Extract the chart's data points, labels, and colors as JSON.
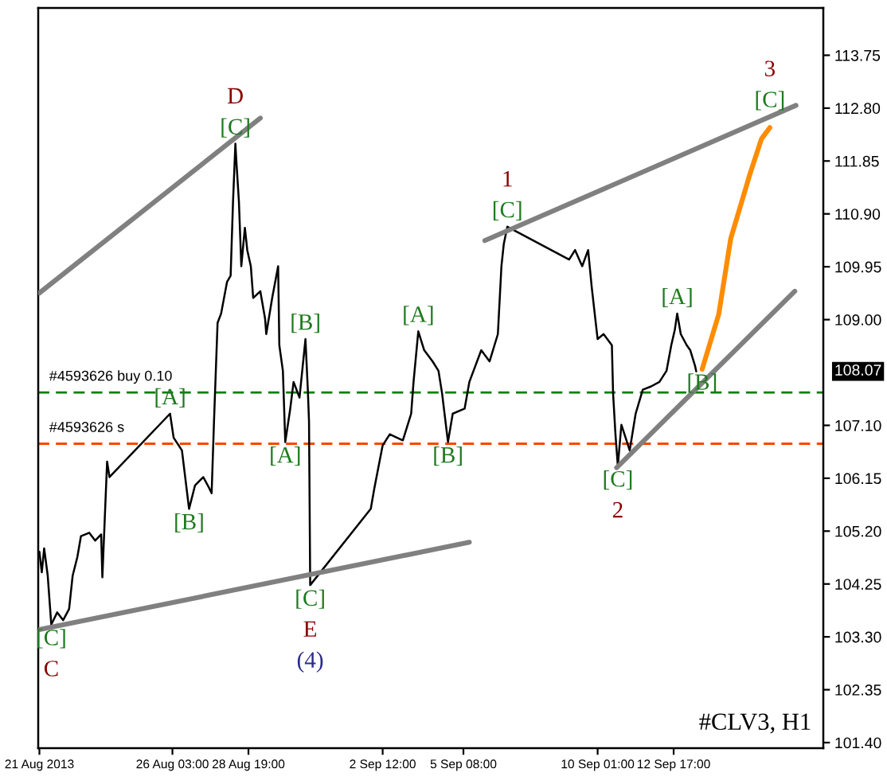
{
  "chart_data": {
    "type": "line",
    "xlim": [
      "2013-08-21T10:00",
      "2013-09-17T23:00"
    ],
    "xticks": [
      {
        "value": "2013-08-21T11:00",
        "label": "21 Aug 2013"
      },
      {
        "value": "2013-08-26T03:00",
        "label": "26 Aug 03:00"
      },
      {
        "value": "2013-08-28T19:00",
        "label": "28 Aug 19:00"
      },
      {
        "value": "2013-09-02T12:00",
        "label": "2 Sep 12:00"
      },
      {
        "value": "2013-09-05T08:00",
        "label": "5 Sep 08:00"
      },
      {
        "value": "2013-09-10T01:00",
        "label": "10 Sep 01:00"
      },
      {
        "value": "2013-09-12T17:00",
        "label": "12 Sep 17:00"
      }
    ],
    "ylim": [
      101.3,
      114.6
    ],
    "yticks": [
      113.75,
      {
        "value": 112.8,
        "label": "112.80"
      },
      111.85,
      {
        "value": 110.9,
        "label": "110.90"
      },
      109.95,
      {
        "value": 109.0,
        "label": "109.00"
      },
      {
        "value": 107.1,
        "label": "107.10"
      },
      106.15,
      {
        "value": 105.2,
        "label": "105.20"
      },
      104.25,
      {
        "value": 103.3,
        "label": "103.30"
      },
      102.35,
      {
        "value": 101.4,
        "label": "101.40"
      }
    ],
    "series": [
      {
        "color": "#000000",
        "x": [
          "2013-08-21T11:00",
          "2013-08-21T13:00",
          "2013-08-21T15:00",
          "2013-08-21T18:00",
          "2013-08-21T21:00",
          "2013-08-22T02:00",
          "2013-08-22T07:00",
          "2013-08-22T12:00",
          "2013-08-22T15:00",
          "2013-08-22T19:00",
          "2013-08-22T22:00",
          "2013-08-23T05:00",
          "2013-08-23T10:00",
          "2013-08-23T15:00",
          "2013-08-23T16:00",
          "2013-08-23T20:00",
          "2013-08-23T22:00",
          "2013-08-26T01:00",
          "2013-08-26T04:00",
          "2013-08-26T11:00",
          "2013-08-26T17:00",
          "2013-08-26T22:00",
          "2013-08-27T05:00",
          "2013-08-27T10:00",
          "2013-08-27T12:00",
          "2013-08-27T14:00",
          "2013-08-27T17:00",
          "2013-08-27T20:00",
          "2013-08-28T01:00",
          "2013-08-28T04:00",
          "2013-08-28T06:00",
          "2013-08-28T08:00",
          "2013-08-28T09:00",
          "2013-08-28T11:00",
          "2013-08-28T13:00",
          "2013-08-28T16:00",
          "2013-08-28T18:00",
          "2013-08-28T21:00",
          "2013-08-28T23:00",
          "2013-08-29T05:00",
          "2013-08-29T09:00",
          "2013-08-29T10:00",
          "2013-08-29T15:00",
          "2013-08-29T20:00",
          "2013-08-29T21:00",
          "2013-08-30T00:00",
          "2013-08-30T02:00",
          "2013-08-30T06:00",
          "2013-08-30T09:00",
          "2013-08-30T14:00",
          "2013-08-30T19:00",
          "2013-08-30T21:00",
          "2013-08-30T22:00",
          "2013-08-30T23:00",
          "2013-09-02T02:00",
          "2013-09-02T05:00",
          "2013-09-02T12:00",
          "2013-09-02T18:00",
          "2013-09-03T05:00",
          "2013-09-03T12:00",
          "2013-09-03T14:00",
          "2013-09-03T18:00",
          "2013-09-03T23:00",
          "2013-09-04T06:00",
          "2013-09-04T11:00",
          "2013-09-04T14:00",
          "2013-09-04T19:00",
          "2013-09-04T23:00",
          "2013-09-05T09:00",
          "2013-09-05T13:00",
          "2013-09-05T23:00",
          "2013-09-06T06:00",
          "2013-09-06T13:00",
          "2013-09-06T16:00",
          "2013-09-06T18:00",
          "2013-09-06T21:00",
          "2013-09-09T01:00",
          "2013-09-09T06:00",
          "2013-09-09T12:00",
          "2013-09-09T17:00",
          "2013-09-09T20:00",
          "2013-09-09T23:00",
          "2013-09-10T01:00",
          "2013-09-10T06:00",
          "2013-09-10T13:00",
          "2013-09-10T14:00",
          "2013-09-10T16:00",
          "2013-09-10T18:00",
          "2013-09-10T21:00",
          "2013-09-11T04:00",
          "2013-09-11T09:00",
          "2013-09-11T15:00",
          "2013-09-11T22:00",
          "2013-09-12T05:00",
          "2013-09-12T11:00",
          "2013-09-12T15:00",
          "2013-09-12T18:00",
          "2013-09-12T20:00",
          "2013-09-12T23:00",
          "2013-09-13T04:00",
          "2013-09-13T07:00",
          "2013-09-13T11:00",
          "2013-09-13T12:00"
        ],
        "values": [
          104.83,
          104.46,
          104.89,
          104.4,
          103.52,
          103.74,
          103.6,
          103.8,
          104.4,
          104.74,
          105.11,
          105.17,
          105.03,
          105.14,
          104.37,
          106.45,
          106.17,
          107.31,
          106.88,
          106.65,
          105.6,
          106.02,
          106.17,
          105.97,
          105.88,
          107.17,
          108.94,
          109.11,
          109.68,
          109.79,
          111.11,
          112.16,
          111.79,
          111.11,
          109.96,
          110.65,
          110.25,
          109.96,
          109.39,
          109.51,
          109.02,
          108.74,
          109.39,
          109.96,
          108.54,
          108.08,
          106.8,
          107.37,
          107.88,
          107.6,
          108.65,
          107.74,
          107.17,
          104.23,
          105.6,
          105.97,
          106.74,
          106.94,
          106.83,
          107.31,
          107.88,
          108.79,
          108.45,
          108.25,
          108.08,
          107.68,
          106.8,
          107.31,
          107.4,
          107.88,
          108.45,
          108.25,
          108.74,
          109.96,
          110.36,
          110.67,
          110.08,
          110.25,
          109.96,
          110.25,
          109.59,
          109.02,
          108.65,
          108.74,
          108.54,
          107.68,
          106.94,
          106.37,
          107.11,
          106.65,
          107.31,
          107.74,
          107.8,
          107.88,
          108.08,
          108.54,
          108.82,
          109.11,
          108.74,
          108.54,
          108.45,
          108.17,
          108.07
        ]
      },
      {
        "color": "#808080",
        "x": [
          "2013-08-21T11:00",
          "2013-08-29T05:00"
        ],
        "values": [
          109.48,
          112.62
        ]
      },
      {
        "color": "#808080",
        "x": [
          "2013-08-21T11:00",
          "2013-09-05T13:00"
        ],
        "values": [
          103.43,
          105.0
        ]
      },
      {
        "color": "#808080",
        "x": [
          "2013-09-06T02:00",
          "2013-09-17T00:00"
        ],
        "values": [
          110.42,
          112.85
        ]
      },
      {
        "color": "#808080",
        "x": [
          "2013-09-10T17:00",
          "2013-09-16T23:00"
        ],
        "values": [
          106.34,
          109.51
        ]
      },
      {
        "color": "#ff8c00",
        "x": [
          "2013-09-13T17:00",
          "2013-09-14T07:00",
          "2013-09-14T17:00",
          "2013-09-15T09:00",
          "2013-09-15T19:00",
          "2013-09-16T02:00"
        ],
        "values": [
          108.11,
          109.1,
          110.45,
          111.6,
          112.25,
          112.45
        ]
      }
    ],
    "ref_lines": [
      {
        "axis": "y",
        "value": 107.69,
        "label": "#4593626 buy 0.10",
        "color": "#008000",
        "line_style": "dashed"
      },
      {
        "axis": "y",
        "value": 106.77,
        "label": "#4593626 s",
        "color": "#ff4500",
        "line_style": "dashed"
      }
    ],
    "annotations": [
      {
        "text": "[C]",
        "x": "2013-08-28T08:00",
        "y": 112.16
      },
      {
        "text": "D",
        "x": "2013-08-28T08:00",
        "y": 112.16
      },
      {
        "text": "[A]",
        "x": "2013-08-26T01:00",
        "y": 107.31
      },
      {
        "text": "[B]",
        "x": "2013-08-26T17:00",
        "y": 105.6
      },
      {
        "text": "[C]",
        "x": "2013-08-21T21:00",
        "y": 103.52
      },
      {
        "text": "C",
        "x": "2013-08-21T21:00",
        "y": 103.52
      },
      {
        "text": "[B]",
        "x": "2013-08-30T19:00",
        "y": 108.65
      },
      {
        "text": "[A]",
        "x": "2013-08-30T02:00",
        "y": 106.8
      },
      {
        "text": "[C]",
        "x": "2013-08-30T23:00",
        "y": 104.23
      },
      {
        "text": "E",
        "x": "2013-08-30T23:00",
        "y": 104.23
      },
      {
        "text": "(4)",
        "x": "2013-08-30T23:00",
        "y": 104.23
      },
      {
        "text": "[A]",
        "x": "2013-09-03T18:00",
        "y": 108.79
      },
      {
        "text": "[B]",
        "x": "2013-09-04T19:00",
        "y": 106.8
      },
      {
        "text": "[C]",
        "x": "2013-09-06T21:00",
        "y": 110.67
      },
      {
        "text": "1",
        "x": "2013-09-06T21:00",
        "y": 110.67
      },
      {
        "text": "[C]",
        "x": "2013-09-10T18:00",
        "y": 106.37
      },
      {
        "text": "2",
        "x": "2013-09-10T18:00",
        "y": 106.37
      },
      {
        "text": "[A]",
        "x": "2013-09-12T20:00",
        "y": 109.11
      },
      {
        "text": "[B]",
        "x": "2013-09-13T17:00",
        "y": 108.11
      },
      {
        "text": "[C]",
        "x": "2013-09-16T02:00",
        "y": 112.65
      },
      {
        "text": "3",
        "x": "2013-09-16T02:00",
        "y": 112.65
      },
      "108.07",
      "#CLV3, H1"
    ]
  }
}
